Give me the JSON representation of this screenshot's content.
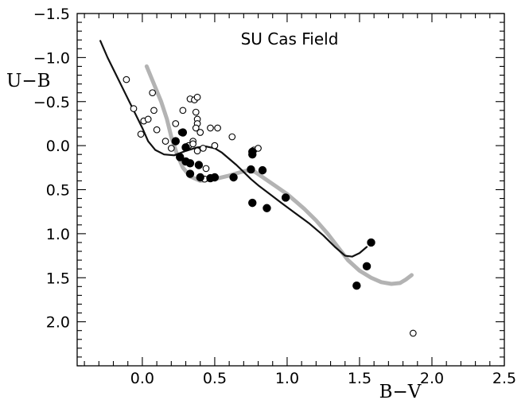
{
  "chart_data": {
    "type": "scatter",
    "title": "SU Cas Field",
    "xlabel": "B−V",
    "ylabel": "U−B",
    "xlim": [
      -0.45,
      2.5
    ],
    "ylim": [
      2.5,
      -1.5
    ],
    "y_inverted": true,
    "grid": false,
    "x_major_ticks": [
      0.0,
      0.5,
      1.0,
      1.5,
      2.0,
      2.5
    ],
    "x_tick_labels": [
      "0.0",
      "0.5",
      "1.0",
      "1.5",
      "2.0",
      "2.5"
    ],
    "y_major_ticks": [
      -1.5,
      -1.0,
      -0.5,
      0.0,
      0.5,
      1.0,
      1.5,
      2.0
    ],
    "y_tick_labels": [
      "−1.5",
      "−1.0",
      "−0.5",
      "0.0",
      "0.5",
      "1.0",
      "1.5",
      "2.0"
    ],
    "colors": {
      "black_curve": "#111111",
      "gray_curve": "#b3b3b3",
      "marker": "#000000"
    },
    "series": [
      {
        "kind": "line",
        "style": "black",
        "points": [
          [
            -0.29,
            -1.19
          ],
          [
            -0.24,
            -1.0
          ],
          [
            -0.18,
            -0.8
          ],
          [
            -0.12,
            -0.6
          ],
          [
            -0.06,
            -0.4
          ],
          [
            0.0,
            -0.2
          ],
          [
            0.04,
            -0.05
          ],
          [
            0.09,
            0.05
          ],
          [
            0.15,
            0.1
          ],
          [
            0.22,
            0.11
          ],
          [
            0.3,
            0.06
          ],
          [
            0.38,
            0.02
          ],
          [
            0.44,
            0.01
          ],
          [
            0.5,
            0.03
          ],
          [
            0.55,
            0.08
          ],
          [
            0.6,
            0.15
          ],
          [
            0.65,
            0.22
          ],
          [
            0.7,
            0.3
          ],
          [
            0.75,
            0.38
          ],
          [
            0.8,
            0.45
          ],
          [
            0.88,
            0.55
          ],
          [
            0.96,
            0.65
          ],
          [
            1.05,
            0.76
          ],
          [
            1.15,
            0.88
          ],
          [
            1.25,
            1.02
          ],
          [
            1.33,
            1.15
          ],
          [
            1.4,
            1.25
          ],
          [
            1.45,
            1.26
          ],
          [
            1.5,
            1.22
          ],
          [
            1.55,
            1.15
          ]
        ]
      },
      {
        "kind": "line",
        "style": "gray",
        "points": [
          [
            0.03,
            -0.9
          ],
          [
            0.08,
            -0.7
          ],
          [
            0.13,
            -0.5
          ],
          [
            0.17,
            -0.3
          ],
          [
            0.2,
            -0.1
          ],
          [
            0.24,
            0.1
          ],
          [
            0.28,
            0.25
          ],
          [
            0.33,
            0.35
          ],
          [
            0.4,
            0.4
          ],
          [
            0.5,
            0.38
          ],
          [
            0.6,
            0.34
          ],
          [
            0.68,
            0.3
          ],
          [
            0.73,
            0.28
          ],
          [
            0.78,
            0.3
          ],
          [
            0.85,
            0.38
          ],
          [
            0.93,
            0.47
          ],
          [
            1.0,
            0.55
          ],
          [
            1.05,
            0.62
          ],
          [
            1.12,
            0.72
          ],
          [
            1.2,
            0.85
          ],
          [
            1.28,
            1.0
          ],
          [
            1.35,
            1.15
          ],
          [
            1.42,
            1.3
          ],
          [
            1.5,
            1.42
          ],
          [
            1.58,
            1.5
          ],
          [
            1.65,
            1.55
          ],
          [
            1.72,
            1.57
          ],
          [
            1.78,
            1.56
          ],
          [
            1.82,
            1.52
          ],
          [
            1.86,
            1.47
          ]
        ]
      },
      {
        "kind": "scatter",
        "name": "open",
        "fill": "none",
        "points": [
          [
            -0.11,
            -0.75
          ],
          [
            -0.06,
            -0.42
          ],
          [
            0.01,
            -0.28
          ],
          [
            0.04,
            -0.3
          ],
          [
            0.08,
            -0.4
          ],
          [
            0.07,
            -0.6
          ],
          [
            -0.01,
            -0.13
          ],
          [
            0.1,
            -0.18
          ],
          [
            0.16,
            -0.05
          ],
          [
            0.2,
            0.03
          ],
          [
            0.23,
            -0.25
          ],
          [
            0.27,
            -0.15
          ],
          [
            0.28,
            -0.4
          ],
          [
            0.33,
            -0.53
          ],
          [
            0.36,
            -0.52
          ],
          [
            0.38,
            -0.55
          ],
          [
            0.37,
            -0.38
          ],
          [
            0.38,
            -0.3
          ],
          [
            0.38,
            -0.25
          ],
          [
            0.37,
            -0.2
          ],
          [
            0.4,
            -0.15
          ],
          [
            0.35,
            -0.05
          ],
          [
            0.32,
            0.0
          ],
          [
            0.35,
            -0.02
          ],
          [
            0.42,
            0.03
          ],
          [
            0.38,
            0.06
          ],
          [
            0.47,
            -0.2
          ],
          [
            0.52,
            -0.2
          ],
          [
            0.5,
            0.0
          ],
          [
            0.62,
            -0.1
          ],
          [
            0.44,
            0.26
          ],
          [
            0.43,
            0.38
          ],
          [
            0.76,
            0.1
          ],
          [
            0.77,
            0.05
          ],
          [
            0.8,
            0.03
          ],
          [
            1.87,
            2.13
          ]
        ]
      },
      {
        "kind": "scatter",
        "name": "filled",
        "fill": "black",
        "points": [
          [
            0.23,
            -0.05
          ],
          [
            0.28,
            -0.15
          ],
          [
            0.3,
            0.02
          ],
          [
            0.26,
            0.13
          ],
          [
            0.3,
            0.18
          ],
          [
            0.33,
            0.2
          ],
          [
            0.33,
            0.32
          ],
          [
            0.39,
            0.22
          ],
          [
            0.4,
            0.36
          ],
          [
            0.47,
            0.37
          ],
          [
            0.5,
            0.36
          ],
          [
            0.63,
            0.36
          ],
          [
            0.76,
            0.07
          ],
          [
            0.76,
            0.1
          ],
          [
            0.75,
            0.27
          ],
          [
            0.83,
            0.28
          ],
          [
            0.76,
            0.65
          ],
          [
            0.86,
            0.71
          ],
          [
            0.99,
            0.59
          ],
          [
            1.58,
            1.1
          ],
          [
            1.55,
            1.37
          ],
          [
            1.48,
            1.59
          ]
        ]
      }
    ]
  }
}
